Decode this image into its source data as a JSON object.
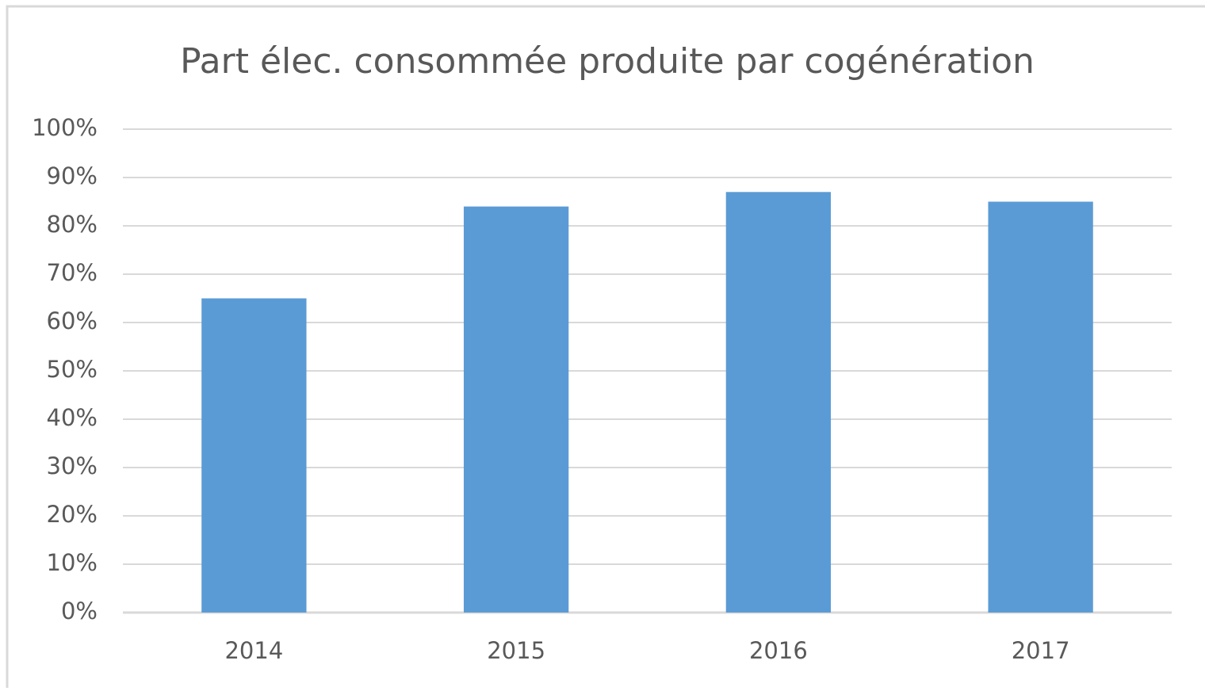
{
  "chart_data": {
    "type": "bar",
    "title": "Part élec. consommée produite par cogénération",
    "categories": [
      "2014",
      "2015",
      "2016",
      "2017"
    ],
    "values": [
      65,
      84,
      87,
      85
    ],
    "color": "#5b9bd5",
    "ylim": [
      0,
      100
    ],
    "yticks": [
      {
        "value": 0,
        "label": "0%"
      },
      {
        "value": 10,
        "label": "10%"
      },
      {
        "value": 20,
        "label": "20%"
      },
      {
        "value": 30,
        "label": "30%"
      },
      {
        "value": 40,
        "label": "40%"
      },
      {
        "value": 50,
        "label": "50%"
      },
      {
        "value": 60,
        "label": "60%"
      },
      {
        "value": 70,
        "label": "70%"
      },
      {
        "value": 80,
        "label": "80%"
      },
      {
        "value": 90,
        "label": "90%"
      },
      {
        "value": 100,
        "label": "100%"
      }
    ],
    "grid": true
  }
}
